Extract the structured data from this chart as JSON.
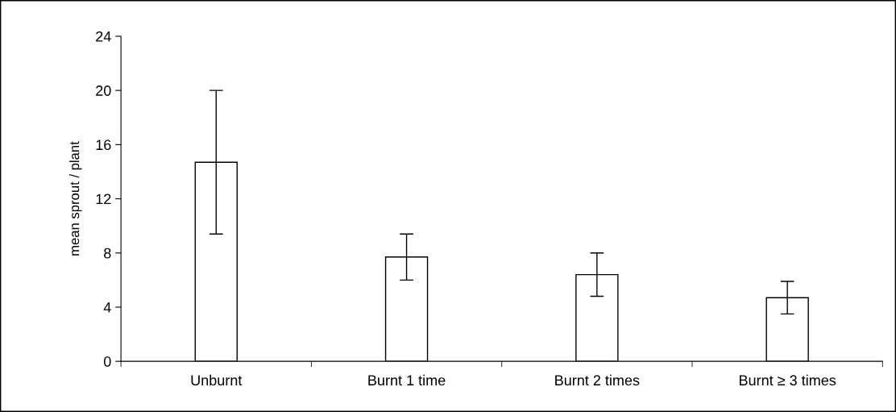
{
  "chart_data": {
    "type": "bar",
    "ylabel": "mean sprout / plant",
    "categories": [
      "Unburnt",
      "Burnt 1 time",
      "Burnt 2 times",
      "Burnt ≥ 3 times"
    ],
    "values": [
      14.7,
      7.7,
      6.4,
      4.7
    ],
    "errors": [
      5.3,
      1.7,
      1.6,
      1.2
    ],
    "color": "#ffffff",
    "ylim": [
      0,
      24
    ],
    "yticks": [
      0,
      4,
      8,
      12,
      16,
      20,
      24
    ],
    "grid": false
  }
}
